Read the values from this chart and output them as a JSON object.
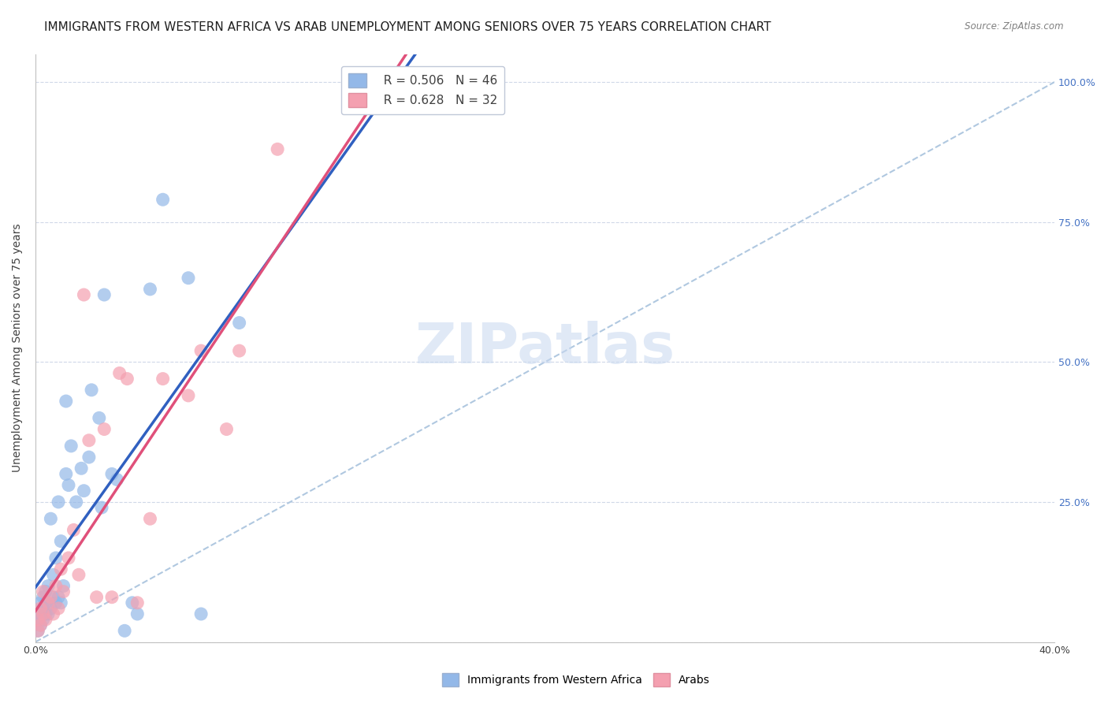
{
  "title": "IMMIGRANTS FROM WESTERN AFRICA VS ARAB UNEMPLOYMENT AMONG SENIORS OVER 75 YEARS CORRELATION CHART",
  "source": "Source: ZipAtlas.com",
  "xlabel_bottom": "",
  "ylabel": "Unemployment Among Seniors over 75 years",
  "xlim": [
    0.0,
    0.4
  ],
  "ylim": [
    0.0,
    1.05
  ],
  "x_ticks": [
    0.0,
    0.1,
    0.2,
    0.3,
    0.4
  ],
  "x_tick_labels": [
    "0.0%",
    "",
    "",
    "",
    "40.0%"
  ],
  "y_ticks_right": [
    0.0,
    0.25,
    0.5,
    0.75,
    1.0
  ],
  "y_tick_labels_right": [
    "",
    "25.0%",
    "50.0%",
    "75.0%",
    "100.0%"
  ],
  "legend_label1": "Immigrants from Western Africa",
  "legend_label2": "Arabs",
  "r1": 0.506,
  "n1": 46,
  "r2": 0.628,
  "n2": 32,
  "blue_color": "#93b8e8",
  "pink_color": "#f4a0b0",
  "blue_line_color": "#3060c0",
  "pink_line_color": "#e0507a",
  "diag_color": "#b0c8e0",
  "watermark": "ZIPatlas",
  "blue_x": [
    0.001,
    0.001,
    0.002,
    0.002,
    0.002,
    0.003,
    0.003,
    0.003,
    0.004,
    0.004,
    0.004,
    0.005,
    0.005,
    0.006,
    0.006,
    0.007,
    0.007,
    0.008,
    0.008,
    0.009,
    0.009,
    0.01,
    0.01,
    0.011,
    0.012,
    0.012,
    0.013,
    0.014,
    0.016,
    0.018,
    0.019,
    0.021,
    0.022,
    0.025,
    0.026,
    0.027,
    0.03,
    0.032,
    0.035,
    0.038,
    0.04,
    0.045,
    0.05,
    0.06,
    0.065,
    0.08
  ],
  "blue_y": [
    0.02,
    0.04,
    0.03,
    0.05,
    0.07,
    0.04,
    0.06,
    0.08,
    0.05,
    0.07,
    0.09,
    0.05,
    0.1,
    0.06,
    0.22,
    0.08,
    0.12,
    0.07,
    0.15,
    0.08,
    0.25,
    0.07,
    0.18,
    0.1,
    0.43,
    0.3,
    0.28,
    0.35,
    0.25,
    0.31,
    0.27,
    0.33,
    0.45,
    0.4,
    0.24,
    0.62,
    0.3,
    0.29,
    0.02,
    0.07,
    0.05,
    0.63,
    0.79,
    0.65,
    0.05,
    0.57
  ],
  "pink_x": [
    0.001,
    0.001,
    0.002,
    0.002,
    0.003,
    0.003,
    0.004,
    0.005,
    0.006,
    0.007,
    0.008,
    0.009,
    0.01,
    0.011,
    0.013,
    0.015,
    0.017,
    0.019,
    0.021,
    0.024,
    0.027,
    0.03,
    0.033,
    0.036,
    0.04,
    0.045,
    0.05,
    0.06,
    0.065,
    0.075,
    0.08,
    0.095
  ],
  "pink_y": [
    0.02,
    0.04,
    0.03,
    0.06,
    0.05,
    0.09,
    0.04,
    0.07,
    0.08,
    0.05,
    0.1,
    0.06,
    0.13,
    0.09,
    0.15,
    0.2,
    0.12,
    0.62,
    0.36,
    0.08,
    0.38,
    0.08,
    0.48,
    0.47,
    0.07,
    0.22,
    0.47,
    0.44,
    0.52,
    0.38,
    0.52,
    0.88
  ],
  "background_color": "#ffffff",
  "grid_color": "#d0d8e8",
  "title_fontsize": 11,
  "axis_label_fontsize": 10,
  "tick_fontsize": 9,
  "legend_fontsize": 11
}
